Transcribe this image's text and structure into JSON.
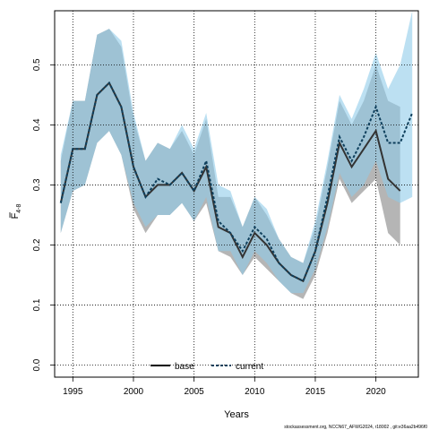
{
  "chart_data": {
    "type": "line",
    "title": "",
    "xlabel": "Years",
    "ylabel_main": "F",
    "ylabel_sub": "4-8",
    "xlim": [
      1993.5,
      2023.5
    ],
    "ylim": [
      -0.02,
      0.59
    ],
    "x_ticks": [
      1995,
      2000,
      2005,
      2010,
      2015,
      2020
    ],
    "y_ticks": [
      0.0,
      0.1,
      0.2,
      0.3,
      0.4,
      0.5
    ],
    "y_tick_labels": [
      "0.0",
      "0.1",
      "0.2",
      "0.3",
      "0.4",
      "0.5"
    ],
    "grid": true,
    "legend_position": "bottom-center",
    "series": [
      {
        "name": "base",
        "color": "#333333",
        "band_color": "#a8a8a8",
        "line_style": "solid",
        "x": [
          1994,
          1995,
          1996,
          1997,
          1998,
          1999,
          2000,
          2001,
          2002,
          2003,
          2004,
          2005,
          2006,
          2007,
          2008,
          2009,
          2010,
          2011,
          2012,
          2013,
          2014,
          2015,
          2016,
          2017,
          2018,
          2019,
          2020,
          2021,
          2022
        ],
        "values": [
          0.27,
          0.36,
          0.36,
          0.45,
          0.47,
          0.43,
          0.33,
          0.28,
          0.3,
          0.3,
          0.32,
          0.29,
          0.33,
          0.23,
          0.22,
          0.18,
          0.22,
          0.2,
          0.17,
          0.15,
          0.14,
          0.19,
          0.27,
          0.37,
          0.33,
          0.36,
          0.39,
          0.31,
          0.29
        ],
        "lower": [
          0.22,
          0.29,
          0.3,
          0.37,
          0.39,
          0.35,
          0.26,
          0.22,
          0.25,
          0.25,
          0.27,
          0.24,
          0.27,
          0.19,
          0.18,
          0.15,
          0.18,
          0.16,
          0.14,
          0.12,
          0.11,
          0.15,
          0.22,
          0.31,
          0.27,
          0.29,
          0.31,
          0.22,
          0.2
        ],
        "upper": [
          0.34,
          0.44,
          0.44,
          0.55,
          0.56,
          0.53,
          0.41,
          0.34,
          0.37,
          0.36,
          0.39,
          0.35,
          0.41,
          0.28,
          0.28,
          0.23,
          0.28,
          0.25,
          0.21,
          0.18,
          0.17,
          0.23,
          0.33,
          0.44,
          0.4,
          0.44,
          0.5,
          0.44,
          0.43
        ]
      },
      {
        "name": "current",
        "color": "#0e3f5c",
        "band_color": "#8fcbe9",
        "line_style": "dashed",
        "x": [
          1994,
          1995,
          1996,
          1997,
          1998,
          1999,
          2000,
          2001,
          2002,
          2003,
          2004,
          2005,
          2006,
          2007,
          2008,
          2009,
          2010,
          2011,
          2012,
          2013,
          2014,
          2015,
          2016,
          2017,
          2018,
          2019,
          2020,
          2021,
          2022,
          2023
        ],
        "values": [
          0.27,
          0.36,
          0.36,
          0.45,
          0.47,
          0.43,
          0.33,
          0.28,
          0.31,
          0.3,
          0.32,
          0.29,
          0.34,
          0.24,
          0.22,
          0.19,
          0.23,
          0.21,
          0.17,
          0.15,
          0.14,
          0.19,
          0.28,
          0.38,
          0.34,
          0.38,
          0.43,
          0.37,
          0.37,
          0.42
        ],
        "lower": [
          0.22,
          0.29,
          0.3,
          0.37,
          0.39,
          0.35,
          0.27,
          0.23,
          0.25,
          0.25,
          0.27,
          0.24,
          0.28,
          0.19,
          0.19,
          0.15,
          0.19,
          0.17,
          0.14,
          0.12,
          0.12,
          0.16,
          0.23,
          0.32,
          0.28,
          0.3,
          0.34,
          0.28,
          0.27,
          0.28
        ],
        "upper": [
          0.35,
          0.44,
          0.44,
          0.55,
          0.56,
          0.54,
          0.42,
          0.34,
          0.37,
          0.36,
          0.4,
          0.36,
          0.42,
          0.3,
          0.29,
          0.23,
          0.28,
          0.26,
          0.21,
          0.18,
          0.17,
          0.24,
          0.34,
          0.45,
          0.41,
          0.46,
          0.52,
          0.46,
          0.5,
          0.59
        ]
      }
    ]
  },
  "legend": {
    "base_label": "base",
    "current_label": "current"
  },
  "footer": {
    "source_text": "stockassessment.org, NCCN67_AFWG2024, r18002 , git:e36aa2b496f0"
  }
}
